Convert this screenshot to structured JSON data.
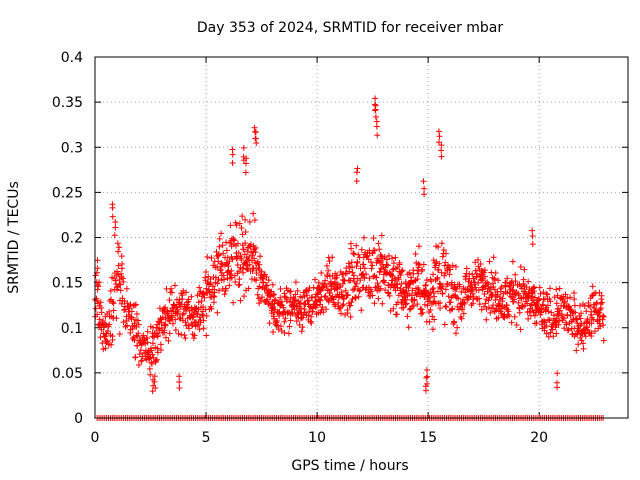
{
  "chart_data": {
    "type": "scatter",
    "title": "Day 353 of 2024, SRMTID for receiver mbar",
    "xlabel": "GPS time / hours",
    "ylabel": "SRMTID / TECUs",
    "xlim": [
      0,
      24
    ],
    "ylim": [
      0,
      0.4
    ],
    "xticks": [
      0,
      5,
      10,
      15,
      20
    ],
    "yticks": [
      0,
      0.05,
      0.1,
      0.15,
      0.2,
      0.25,
      0.3,
      0.35,
      0.4
    ],
    "xtick_labels": [
      "0",
      "5",
      "10",
      "15",
      "20"
    ],
    "ytick_labels": [
      "0",
      "0.05",
      "0.1",
      "0.15",
      "0.2",
      "0.25",
      "0.3",
      "0.35",
      "0.4"
    ],
    "grid": true,
    "marker": "+",
    "x_range_of_data": [
      0,
      22.9
    ],
    "series": [
      {
        "name": "SRMTID",
        "color": "#ff0000",
        "profile_note": "Dense per-epoch samples; representative envelope listed below (hour, typical value, spread), plus notable peaks and zero-valued samples along the axis.",
        "envelope": [
          [
            0.0,
            0.13,
            0.04
          ],
          [
            0.5,
            0.09,
            0.03
          ],
          [
            1.0,
            0.16,
            0.05
          ],
          [
            1.5,
            0.11,
            0.03
          ],
          [
            2.0,
            0.09,
            0.03
          ],
          [
            2.5,
            0.07,
            0.03
          ],
          [
            3.0,
            0.1,
            0.03
          ],
          [
            3.5,
            0.13,
            0.03
          ],
          [
            4.0,
            0.12,
            0.03
          ],
          [
            4.5,
            0.11,
            0.03
          ],
          [
            5.0,
            0.13,
            0.04
          ],
          [
            5.5,
            0.16,
            0.04
          ],
          [
            6.0,
            0.17,
            0.05
          ],
          [
            6.5,
            0.19,
            0.06
          ],
          [
            7.0,
            0.18,
            0.05
          ],
          [
            7.5,
            0.15,
            0.04
          ],
          [
            8.0,
            0.12,
            0.03
          ],
          [
            8.5,
            0.12,
            0.03
          ],
          [
            9.0,
            0.13,
            0.03
          ],
          [
            9.5,
            0.12,
            0.03
          ],
          [
            10.0,
            0.13,
            0.03
          ],
          [
            10.5,
            0.15,
            0.03
          ],
          [
            11.0,
            0.14,
            0.03
          ],
          [
            11.5,
            0.15,
            0.04
          ],
          [
            12.0,
            0.16,
            0.04
          ],
          [
            12.5,
            0.17,
            0.05
          ],
          [
            13.0,
            0.16,
            0.04
          ],
          [
            13.5,
            0.15,
            0.04
          ],
          [
            14.0,
            0.14,
            0.04
          ],
          [
            14.5,
            0.15,
            0.04
          ],
          [
            15.0,
            0.13,
            0.04
          ],
          [
            15.5,
            0.16,
            0.05
          ],
          [
            16.0,
            0.14,
            0.04
          ],
          [
            16.5,
            0.13,
            0.03
          ],
          [
            17.0,
            0.15,
            0.03
          ],
          [
            17.5,
            0.15,
            0.03
          ],
          [
            18.0,
            0.14,
            0.03
          ],
          [
            18.5,
            0.13,
            0.03
          ],
          [
            19.0,
            0.14,
            0.04
          ],
          [
            19.5,
            0.13,
            0.03
          ],
          [
            20.0,
            0.12,
            0.03
          ],
          [
            20.5,
            0.11,
            0.03
          ],
          [
            21.0,
            0.12,
            0.03
          ],
          [
            21.5,
            0.11,
            0.03
          ],
          [
            22.0,
            0.1,
            0.03
          ],
          [
            22.5,
            0.12,
            0.03
          ],
          [
            22.9,
            0.11,
            0.03
          ]
        ],
        "peaks": [
          [
            0.8,
            0.24
          ],
          [
            0.9,
            0.22
          ],
          [
            6.2,
            0.3
          ],
          [
            6.7,
            0.3
          ],
          [
            6.8,
            0.29
          ],
          [
            7.2,
            0.325
          ],
          [
            7.25,
            0.32
          ],
          [
            11.8,
            0.28
          ],
          [
            12.6,
            0.355
          ],
          [
            12.65,
            0.35
          ],
          [
            12.7,
            0.33
          ],
          [
            15.5,
            0.32
          ],
          [
            15.6,
            0.305
          ],
          [
            14.8,
            0.265
          ],
          [
            19.7,
            0.21
          ],
          [
            0.1,
            0.175
          ],
          [
            1.2,
            0.18
          ],
          [
            2.6,
            0.045
          ],
          [
            2.7,
            0.05
          ],
          [
            14.9,
            0.045
          ],
          [
            14.95,
            0.055
          ],
          [
            3.8,
            0.05
          ],
          [
            20.8,
            0.05
          ]
        ],
        "zero_samples_hours": [
          0.1,
          22.9
        ]
      }
    ]
  }
}
